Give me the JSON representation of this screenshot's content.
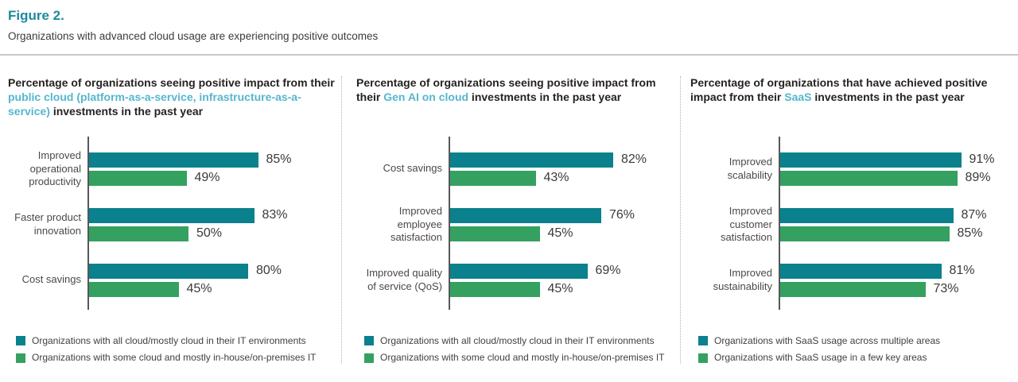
{
  "figure": {
    "label": "Figure 2.",
    "subtitle": "Organizations with advanced cloud usage are experiencing positive outcomes"
  },
  "colors": {
    "figure_label": "#1d8a9c",
    "title_highlight": "#56b6cf",
    "series_teal": "#0a818c",
    "series_green": "#35a160",
    "heading_text": "#272221",
    "axis_line": "#56575b"
  },
  "chart_data": [
    {
      "type": "bar",
      "orientation": "horizontal",
      "title_parts": [
        {
          "text": "Percentage of organizations seeing positive impact from their ",
          "highlight": false
        },
        {
          "text": "public cloud (platform-as-a-service, infrastructure-as-a-service)",
          "highlight": true
        },
        {
          "text": " investments in the past year",
          "highlight": false
        }
      ],
      "categories": [
        "Improved operational productivity",
        "Faster product innovation",
        "Cost savings"
      ],
      "series": [
        {
          "name": "Organizations with all cloud/mostly cloud in their IT environments",
          "color": "#0a818c",
          "values": [
            85,
            83,
            80
          ]
        },
        {
          "name": "Organizations with some cloud and mostly in-house/on-premises IT",
          "color": "#35a160",
          "values": [
            49,
            50,
            45
          ]
        }
      ],
      "value_suffix": "%",
      "xlim": [
        0,
        100
      ],
      "grid": false,
      "legend_position": "bottom"
    },
    {
      "type": "bar",
      "orientation": "horizontal",
      "title_parts": [
        {
          "text": "Percentage of organizations seeing positive impact from their ",
          "highlight": false
        },
        {
          "text": "Gen AI on cloud",
          "highlight": true
        },
        {
          "text": " investments in the past year",
          "highlight": false
        }
      ],
      "categories": [
        "Cost savings",
        "Improved employee satisfaction",
        "Improved quality of service (QoS)"
      ],
      "series": [
        {
          "name": "Organizations with all cloud/mostly cloud in their IT environments",
          "color": "#0a818c",
          "values": [
            82,
            76,
            69
          ]
        },
        {
          "name": "Organizations with some cloud and mostly in-house/on-premises IT",
          "color": "#35a160",
          "values": [
            43,
            45,
            45
          ]
        }
      ],
      "value_suffix": "%",
      "xlim": [
        0,
        100
      ],
      "grid": false,
      "legend_position": "bottom"
    },
    {
      "type": "bar",
      "orientation": "horizontal",
      "title_parts": [
        {
          "text": "Percentage of organizations that have achieved positive impact from their ",
          "highlight": false
        },
        {
          "text": "SaaS",
          "highlight": true
        },
        {
          "text": " investments in the past year",
          "highlight": false
        }
      ],
      "categories": [
        "Improved scalability",
        "Improved customer satisfaction",
        "Improved sustainability"
      ],
      "series": [
        {
          "name": "Organizations with SaaS usage across multiple areas",
          "color": "#0a818c",
          "values": [
            91,
            87,
            81
          ]
        },
        {
          "name": "Organizations with SaaS usage in a few key areas",
          "color": "#35a160",
          "values": [
            89,
            85,
            73
          ]
        }
      ],
      "value_suffix": "%",
      "xlim": [
        0,
        100
      ],
      "grid": false,
      "legend_position": "bottom"
    }
  ]
}
